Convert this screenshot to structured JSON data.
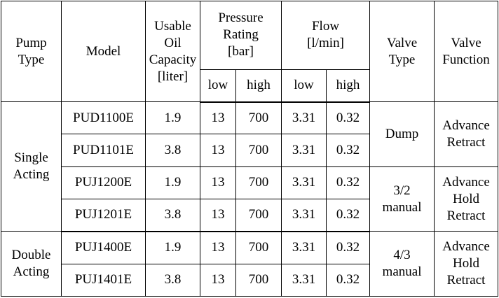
{
  "headers": {
    "pump_type": "Pump\nType",
    "model": "Model",
    "capacity": "Usable\nOil\nCapacity\n[liter]",
    "pressure": "Pressure\nRating\n[bar]",
    "flow": "Flow\n[l/min]",
    "valve_type": "Valve\nType",
    "valve_function": "Valve\nFunction",
    "low": "low",
    "high": "high"
  },
  "groups": [
    {
      "pump_type": "Single\nActing"
    },
    {
      "pump_type": "Double\nActing"
    }
  ],
  "valves": [
    {
      "type": "Dump",
      "function": "Advance\nRetract"
    },
    {
      "type": "3/2\nmanual",
      "function": "Advance\nHold\nRetract"
    },
    {
      "type": "4/3\nmanual",
      "function": "Advance\nHold\nRetract"
    }
  ],
  "rows": [
    {
      "model": "PUD1100E",
      "capacity": "1.9",
      "p_low": "13",
      "p_high": "700",
      "f_low": "3.31",
      "f_high": "0.32"
    },
    {
      "model": "PUD1101E",
      "capacity": "3.8",
      "p_low": "13",
      "p_high": "700",
      "f_low": "3.31",
      "f_high": "0.32"
    },
    {
      "model": "PUJ1200E",
      "capacity": "1.9",
      "p_low": "13",
      "p_high": "700",
      "f_low": "3.31",
      "f_high": "0.32"
    },
    {
      "model": "PUJ1201E",
      "capacity": "3.8",
      "p_low": "13",
      "p_high": "700",
      "f_low": "3.31",
      "f_high": "0.32"
    },
    {
      "model": "PUJ1400E",
      "capacity": "1.9",
      "p_low": "13",
      "p_high": "700",
      "f_low": "3.31",
      "f_high": "0.32"
    },
    {
      "model": "PUJ1401E",
      "capacity": "3.8",
      "p_low": "13",
      "p_high": "700",
      "f_low": "3.31",
      "f_high": "0.32"
    }
  ]
}
